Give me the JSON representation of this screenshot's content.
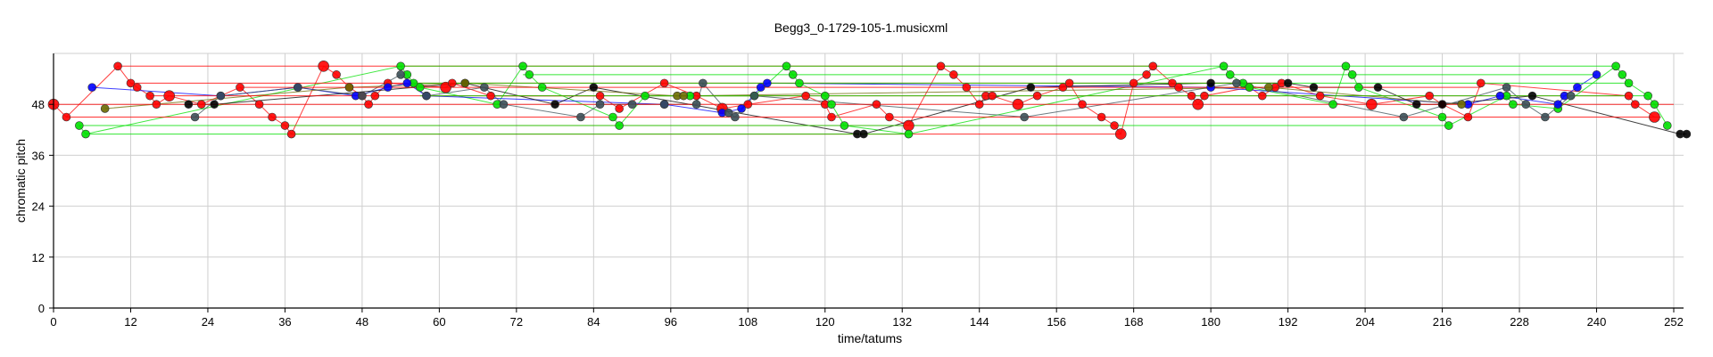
{
  "chart_data": {
    "type": "scatter",
    "title": "Begg3_0-1729-105-1.musicxml",
    "xlabel": "time/tatums",
    "ylabel": "chromatic pitch",
    "xlim": [
      0,
      254
    ],
    "ylim": [
      0,
      60
    ],
    "xticks": [
      "0",
      "12",
      "24",
      "36",
      "48",
      "60",
      "72",
      "84",
      "96",
      "108",
      "120",
      "132",
      "144",
      "156",
      "168",
      "180",
      "192",
      "204",
      "216",
      "228",
      "240",
      "252"
    ],
    "yticks": [
      "0",
      "12",
      "24",
      "36",
      "48"
    ],
    "grid": true,
    "colors": {
      "red": "#ff0000",
      "green": "#00e000",
      "blue": "#0000ff",
      "black": "#000000",
      "slate": "#3a4f57",
      "olive": "#6b6a00"
    },
    "series": [
      {
        "name": "red",
        "color": "#ff0000",
        "points": [
          [
            0,
            48
          ],
          [
            2,
            45
          ],
          [
            10,
            57
          ],
          [
            12,
            53
          ],
          [
            13,
            52
          ],
          [
            15,
            50
          ],
          [
            16,
            48
          ],
          [
            18,
            50
          ],
          [
            23,
            48
          ],
          [
            29,
            52
          ],
          [
            32,
            48
          ],
          [
            34,
            45
          ],
          [
            36,
            43
          ],
          [
            37,
            41
          ],
          [
            42,
            57
          ],
          [
            44,
            55
          ],
          [
            46,
            52
          ],
          [
            48,
            50
          ],
          [
            49,
            48
          ],
          [
            50,
            50
          ],
          [
            52,
            53
          ],
          [
            61,
            52
          ],
          [
            62,
            53
          ],
          [
            68,
            50
          ],
          [
            85,
            50
          ],
          [
            88,
            47
          ],
          [
            95,
            53
          ],
          [
            100,
            50
          ],
          [
            104,
            47
          ],
          [
            108,
            48
          ],
          [
            117,
            50
          ],
          [
            120,
            48
          ],
          [
            121,
            45
          ],
          [
            128,
            48
          ],
          [
            130,
            45
          ],
          [
            133,
            43
          ],
          [
            138,
            57
          ],
          [
            140,
            55
          ],
          [
            142,
            52
          ],
          [
            144,
            48
          ],
          [
            145,
            50
          ],
          [
            146,
            50
          ],
          [
            150,
            48
          ],
          [
            153,
            50
          ],
          [
            157,
            52
          ],
          [
            158,
            53
          ],
          [
            160,
            48
          ],
          [
            163,
            45
          ],
          [
            165,
            43
          ],
          [
            166,
            41
          ],
          [
            168,
            53
          ],
          [
            170,
            55
          ],
          [
            171,
            57
          ],
          [
            174,
            53
          ],
          [
            175,
            52
          ],
          [
            177,
            50
          ],
          [
            178,
            48
          ],
          [
            179,
            50
          ],
          [
            186,
            52
          ],
          [
            188,
            50
          ],
          [
            190,
            52
          ],
          [
            191,
            53
          ],
          [
            197,
            50
          ],
          [
            205,
            48
          ],
          [
            214,
            50
          ],
          [
            216,
            48
          ],
          [
            220,
            45
          ],
          [
            222,
            53
          ],
          [
            245,
            50
          ],
          [
            246,
            48
          ],
          [
            249,
            45
          ]
        ]
      },
      {
        "name": "green",
        "color": "#00e000",
        "points": [
          [
            4,
            43
          ],
          [
            5,
            41
          ],
          [
            54,
            57
          ],
          [
            55,
            55
          ],
          [
            56,
            53
          ],
          [
            57,
            52
          ],
          [
            69,
            48
          ],
          [
            73,
            57
          ],
          [
            74,
            55
          ],
          [
            76,
            52
          ],
          [
            87,
            45
          ],
          [
            88,
            43
          ],
          [
            92,
            50
          ],
          [
            99,
            50
          ],
          [
            109,
            50
          ],
          [
            114,
            57
          ],
          [
            115,
            55
          ],
          [
            116,
            53
          ],
          [
            120,
            50
          ],
          [
            121,
            48
          ],
          [
            123,
            43
          ],
          [
            133,
            41
          ],
          [
            182,
            57
          ],
          [
            183,
            55
          ],
          [
            185,
            53
          ],
          [
            186,
            52
          ],
          [
            199,
            48
          ],
          [
            201,
            57
          ],
          [
            202,
            55
          ],
          [
            203,
            52
          ],
          [
            216,
            45
          ],
          [
            217,
            43
          ],
          [
            226,
            50
          ],
          [
            227,
            48
          ],
          [
            234,
            47
          ],
          [
            243,
            57
          ],
          [
            244,
            55
          ],
          [
            245,
            53
          ],
          [
            248,
            50
          ],
          [
            249,
            48
          ],
          [
            251,
            43
          ]
        ]
      },
      {
        "name": "blue",
        "color": "#0000ff",
        "points": [
          [
            6,
            52
          ],
          [
            26,
            50
          ],
          [
            38,
            52
          ],
          [
            47,
            50
          ],
          [
            52,
            52
          ],
          [
            55,
            53
          ],
          [
            58,
            50
          ],
          [
            95,
            48
          ],
          [
            104,
            46
          ],
          [
            107,
            47
          ],
          [
            110,
            52
          ],
          [
            111,
            53
          ],
          [
            180,
            52
          ],
          [
            220,
            48
          ],
          [
            225,
            50
          ],
          [
            234,
            48
          ],
          [
            235,
            50
          ],
          [
            237,
            52
          ],
          [
            240,
            55
          ]
        ]
      },
      {
        "name": "black",
        "color": "#000000",
        "points": [
          [
            21,
            48
          ],
          [
            25,
            48
          ],
          [
            64,
            53
          ],
          [
            78,
            48
          ],
          [
            84,
            52
          ],
          [
            125,
            41
          ],
          [
            126,
            41
          ],
          [
            152,
            52
          ],
          [
            180,
            53
          ],
          [
            192,
            53
          ],
          [
            196,
            52
          ],
          [
            206,
            52
          ],
          [
            212,
            48
          ],
          [
            216,
            48
          ],
          [
            230,
            50
          ],
          [
            253,
            41
          ],
          [
            254,
            41
          ]
        ]
      },
      {
        "name": "slate",
        "color": "#3a4f57",
        "points": [
          [
            22,
            45
          ],
          [
            26,
            50
          ],
          [
            38,
            52
          ],
          [
            48,
            50
          ],
          [
            54,
            55
          ],
          [
            58,
            50
          ],
          [
            67,
            52
          ],
          [
            70,
            48
          ],
          [
            82,
            45
          ],
          [
            85,
            48
          ],
          [
            90,
            48
          ],
          [
            95,
            48
          ],
          [
            100,
            48
          ],
          [
            101,
            53
          ],
          [
            105,
            46
          ],
          [
            106,
            45
          ],
          [
            109,
            50
          ],
          [
            151,
            45
          ],
          [
            184,
            53
          ],
          [
            210,
            45
          ],
          [
            226,
            52
          ],
          [
            229,
            48
          ],
          [
            232,
            45
          ],
          [
            236,
            50
          ]
        ]
      },
      {
        "name": "olive",
        "color": "#6b6a00",
        "points": [
          [
            8,
            47
          ],
          [
            46,
            52
          ],
          [
            64,
            53
          ],
          [
            97,
            50
          ],
          [
            98,
            50
          ],
          [
            189,
            52
          ],
          [
            219,
            48
          ]
        ]
      }
    ]
  }
}
